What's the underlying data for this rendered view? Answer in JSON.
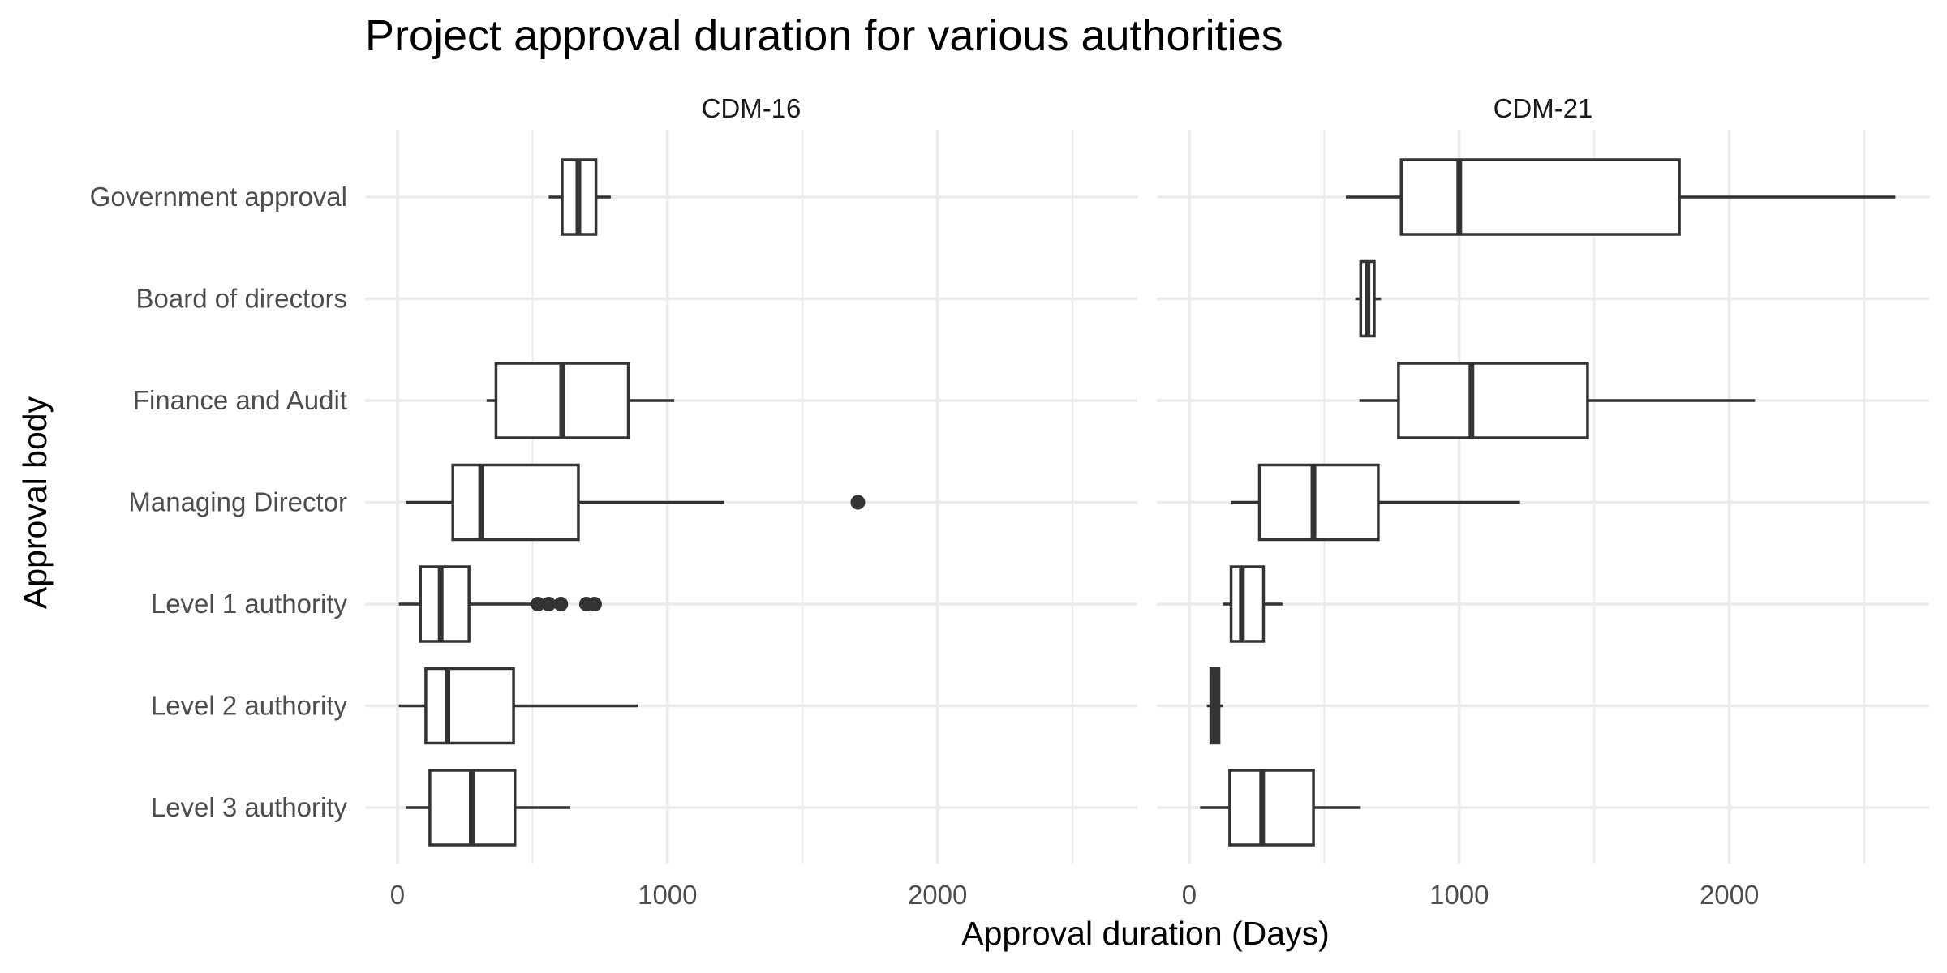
{
  "chart_data": {
    "type": "boxplot",
    "orientation": "horizontal",
    "title": "Project approval duration for various authorities",
    "xlabel": "Approval duration (Days)",
    "ylabel": "Approval body",
    "categories": [
      "Government approval",
      "Board of directors",
      "Finance and Audit",
      "Managing Director",
      "Level 1 authority",
      "Level 2 authority",
      "Level 3 authority"
    ],
    "xlim": [
      -120,
      2740
    ],
    "x_ticks": [
      0,
      1000,
      2000
    ],
    "grid": true,
    "colors": {
      "box_line": "#333333",
      "box_fill": "#ffffff",
      "grid": "#ebebeb"
    },
    "facets": [
      {
        "label": "CDM-16",
        "boxes": [
          {
            "category": "Government approval",
            "whisker_low": 560,
            "q1": 610,
            "median": 670,
            "q3": 735,
            "whisker_high": 790,
            "outliers": []
          },
          {
            "category": "Finance and Audit",
            "whisker_low": 330,
            "q1": 365,
            "median": 610,
            "q3": 855,
            "whisker_high": 1025,
            "outliers": []
          },
          {
            "category": "Managing Director",
            "whisker_low": 30,
            "q1": 205,
            "median": 310,
            "q3": 670,
            "whisker_high": 1210,
            "outliers": [
              1705
            ]
          },
          {
            "category": "Level 1 authority",
            "whisker_low": 5,
            "q1": 85,
            "median": 160,
            "q3": 265,
            "whisker_high": 500,
            "outliers": [
              520,
              560,
              605,
              700,
              730
            ]
          },
          {
            "category": "Level 2 authority",
            "whisker_low": 5,
            "q1": 105,
            "median": 185,
            "q3": 430,
            "whisker_high": 890,
            "outliers": []
          },
          {
            "category": "Level 3 authority",
            "whisker_low": 30,
            "q1": 120,
            "median": 275,
            "q3": 435,
            "whisker_high": 640,
            "outliers": []
          }
        ]
      },
      {
        "label": "CDM-21",
        "boxes": [
          {
            "category": "Government approval",
            "whisker_low": 580,
            "q1": 785,
            "median": 1000,
            "q3": 1815,
            "whisker_high": 2615,
            "outliers": []
          },
          {
            "category": "Board of directors",
            "whisker_low": 615,
            "q1": 635,
            "median": 660,
            "q3": 685,
            "whisker_high": 710,
            "outliers": []
          },
          {
            "category": "Finance and Audit",
            "whisker_low": 630,
            "q1": 775,
            "median": 1045,
            "q3": 1475,
            "whisker_high": 2095,
            "outliers": []
          },
          {
            "category": "Managing Director",
            "whisker_low": 155,
            "q1": 260,
            "median": 460,
            "q3": 700,
            "whisker_high": 1225,
            "outliers": []
          },
          {
            "category": "Level 1 authority",
            "whisker_low": 125,
            "q1": 155,
            "median": 195,
            "q3": 275,
            "whisker_high": 345,
            "outliers": []
          },
          {
            "category": "Level 2 authority",
            "whisker_low": 65,
            "q1": 80,
            "median": 95,
            "q3": 110,
            "whisker_high": 125,
            "outliers": []
          },
          {
            "category": "Level 3 authority",
            "whisker_low": 40,
            "q1": 150,
            "median": 270,
            "q3": 460,
            "whisker_high": 635,
            "outliers": []
          }
        ]
      }
    ]
  }
}
